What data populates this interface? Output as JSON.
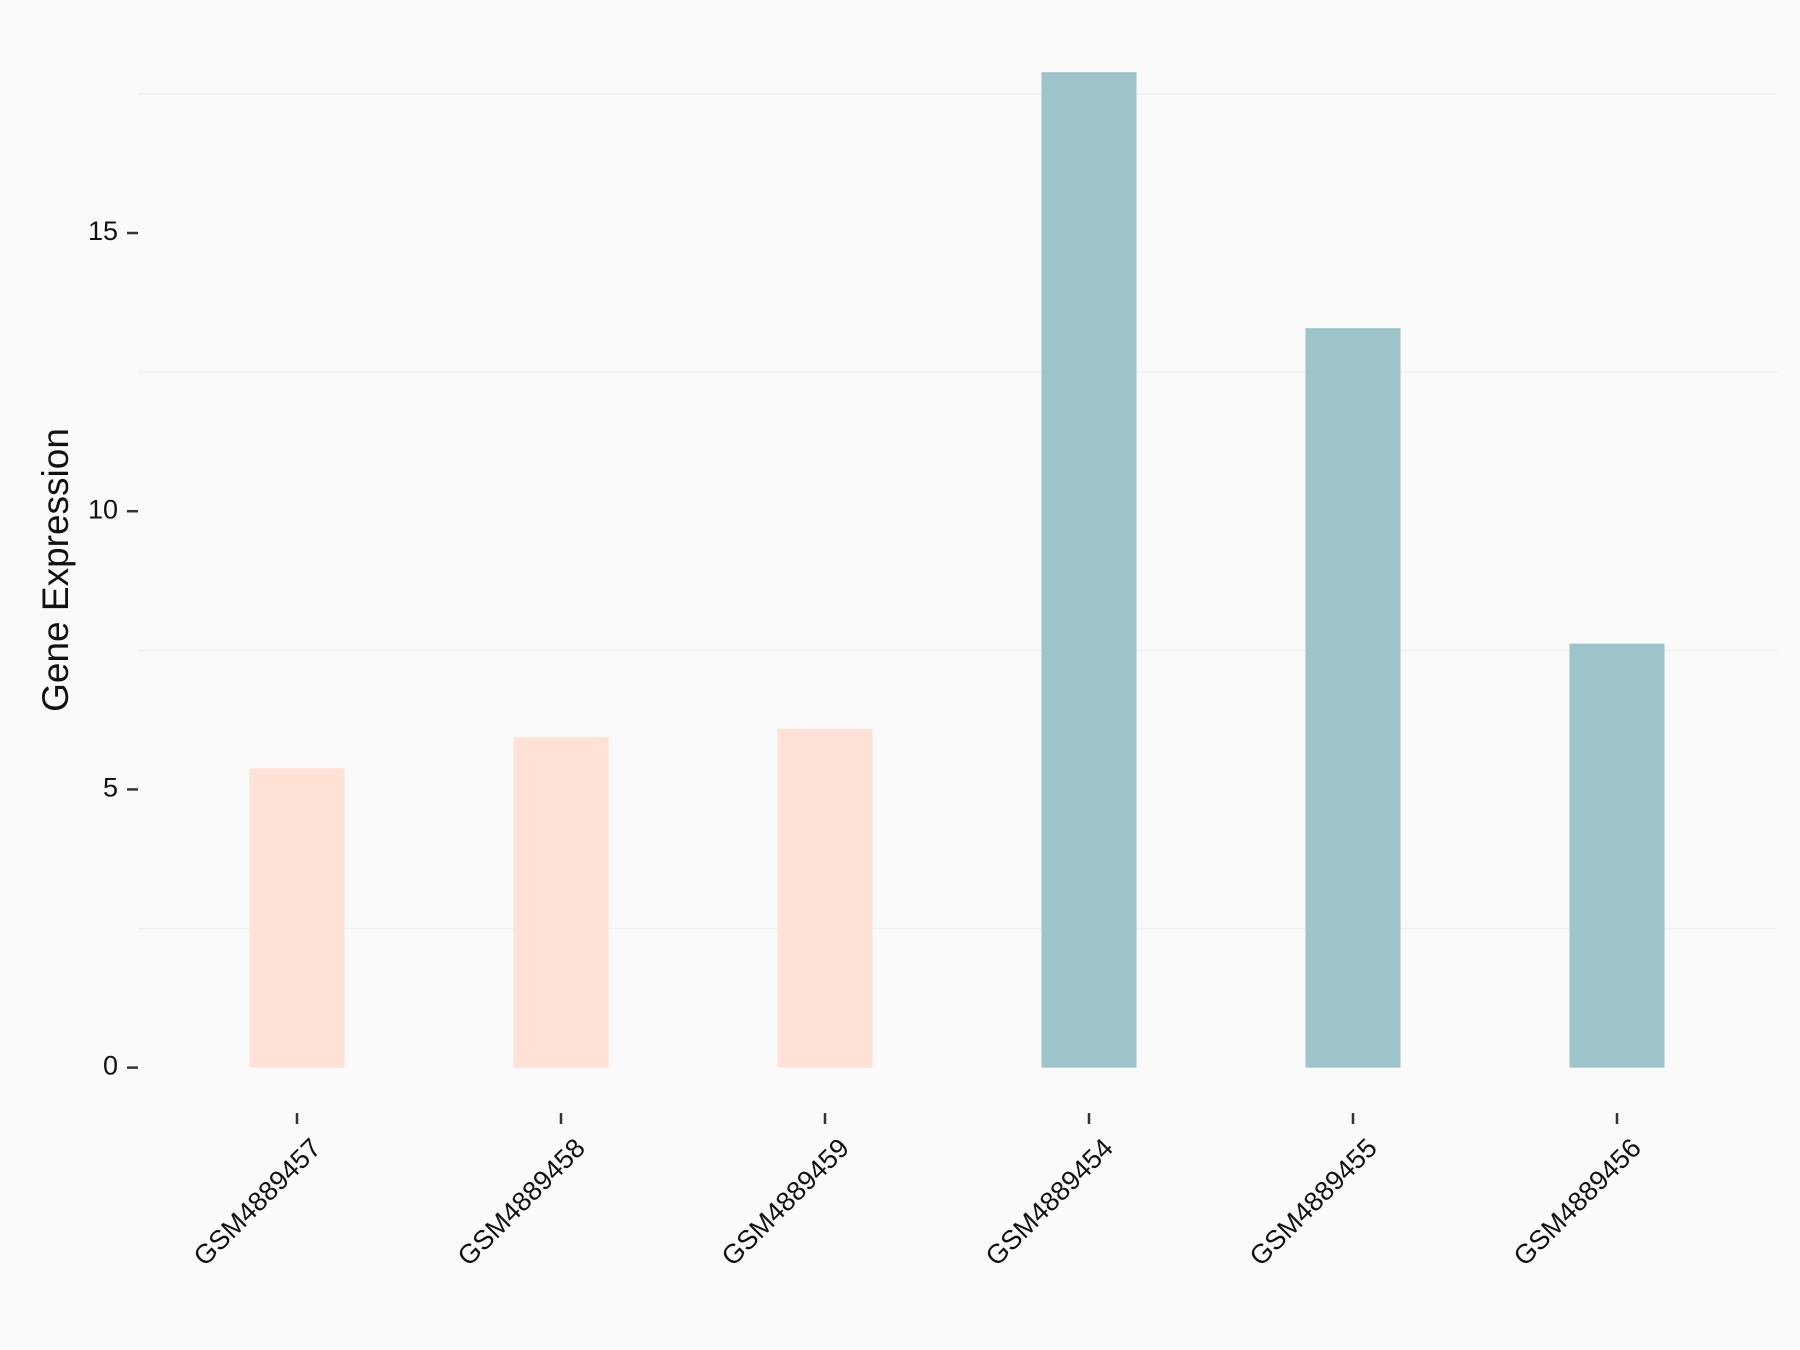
{
  "chart_data": {
    "type": "bar",
    "y_label": "Gene Expression",
    "categories": [
      "GSM4889457",
      "GSM4889458",
      "GSM4889459",
      "GSM4889454",
      "GSM4889455",
      "GSM4889456"
    ],
    "values": [
      5.38,
      5.94,
      6.09,
      17.89,
      13.29,
      7.62
    ],
    "colors": [
      "#FFE1D6",
      "#FFE1D6",
      "#FFE1D6",
      "#9DC4C8",
      "#9DC4C8",
      "#9DC4C8"
    ],
    "ylim": [
      -0.6,
      18.8
    ],
    "yticks": [
      0,
      5,
      10,
      15
    ],
    "minor_grid": [
      2.5,
      7.5,
      12.5,
      17.5
    ]
  }
}
